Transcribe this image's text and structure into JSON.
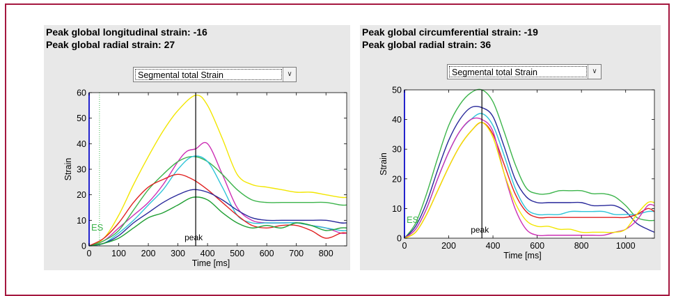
{
  "left": {
    "header_line1": "Peak global longitudinal strain: -16",
    "header_line2": "Peak global radial strain: 27",
    "dropdown_value": "Segmental total Strain"
  },
  "right": {
    "header_line1": "Peak global circumferential strain: -19",
    "header_line2": "Peak global radial strain: 36",
    "dropdown_value": "Segmental total Strain"
  },
  "chart_data": [
    {
      "type": "line",
      "xlabel": "Time [ms]",
      "ylabel": "Strain",
      "xlim": [
        0,
        870
      ],
      "ylim": [
        0,
        60
      ],
      "xticks": [
        0,
        100,
        200,
        300,
        400,
        500,
        600,
        700,
        800
      ],
      "yticks": [
        0,
        10,
        20,
        30,
        40,
        50,
        60
      ],
      "annotations": [
        {
          "text": "ES",
          "x": 35,
          "color": "#3cb44b"
        },
        {
          "text": "peak",
          "x": 360,
          "color": "#000000"
        }
      ],
      "series": [
        {
          "color": "#f2e600",
          "x": [
            0,
            50,
            100,
            150,
            200,
            250,
            300,
            360,
            400,
            450,
            500,
            550,
            600,
            650,
            700,
            750,
            800,
            850,
            870
          ],
          "values": [
            0,
            3,
            12,
            24,
            35,
            45,
            53,
            59,
            55,
            42,
            28,
            24,
            23,
            22,
            21,
            21,
            20,
            19,
            19
          ]
        },
        {
          "color": "#cc2fb4",
          "x": [
            0,
            50,
            100,
            150,
            200,
            250,
            300,
            330,
            360,
            400,
            450,
            500,
            550,
            600,
            650,
            700,
            750,
            800,
            850,
            870
          ],
          "values": [
            0,
            2,
            7,
            12,
            17,
            24,
            33,
            37,
            38,
            40,
            28,
            15,
            10,
            9,
            9,
            9,
            8,
            7,
            5,
            5
          ]
        },
        {
          "color": "#3cb44b",
          "x": [
            0,
            50,
            100,
            150,
            200,
            250,
            300,
            350,
            400,
            450,
            500,
            550,
            600,
            650,
            700,
            750,
            800,
            850,
            870
          ],
          "values": [
            0,
            2,
            6,
            14,
            22,
            28,
            33,
            35,
            33,
            28,
            22,
            18,
            17,
            17,
            17,
            17,
            17,
            16,
            16
          ]
        },
        {
          "color": "#2ec4d8",
          "x": [
            0,
            50,
            100,
            150,
            200,
            250,
            300,
            350,
            400,
            450,
            500,
            550,
            600,
            650,
            700,
            750,
            800,
            850,
            870
          ],
          "values": [
            0,
            1,
            5,
            10,
            16,
            22,
            30,
            35,
            33,
            23,
            12,
            9,
            9,
            9,
            9,
            8,
            7,
            6,
            6
          ]
        },
        {
          "color": "#e02020",
          "x": [
            0,
            50,
            100,
            150,
            200,
            250,
            300,
            350,
            400,
            450,
            500,
            550,
            600,
            650,
            700,
            750,
            800,
            850,
            870
          ],
          "values": [
            0,
            3,
            9,
            17,
            23,
            26,
            28,
            26,
            22,
            17,
            12,
            8,
            7,
            8,
            8,
            6,
            3,
            5,
            5
          ]
        },
        {
          "color": "#28289a",
          "x": [
            0,
            50,
            100,
            150,
            200,
            250,
            300,
            350,
            400,
            450,
            500,
            550,
            600,
            650,
            700,
            750,
            800,
            850,
            870
          ],
          "values": [
            0,
            1,
            4,
            9,
            13,
            17,
            20,
            22,
            21,
            18,
            14,
            11,
            10,
            10,
            10,
            10,
            10,
            9,
            9
          ]
        },
        {
          "color": "#1e9e32",
          "x": [
            0,
            50,
            100,
            150,
            200,
            250,
            300,
            350,
            400,
            450,
            500,
            550,
            600,
            650,
            700,
            750,
            800,
            850,
            870
          ],
          "values": [
            0,
            1,
            3,
            7,
            11,
            13,
            16,
            19,
            18,
            13,
            9,
            7,
            8,
            7,
            9,
            8,
            6,
            7,
            7
          ]
        }
      ]
    },
    {
      "type": "line",
      "xlabel": "Time [ms]",
      "ylabel": "Strain",
      "xlim": [
        0,
        1130
      ],
      "ylim": [
        0,
        50
      ],
      "xticks": [
        0,
        200,
        400,
        600,
        800,
        1000
      ],
      "yticks": [
        0,
        10,
        20,
        30,
        40,
        50
      ],
      "annotations": [
        {
          "text": "ES",
          "x": 0,
          "color": "#3cb44b"
        },
        {
          "text": "peak",
          "x": 350,
          "color": "#000000"
        }
      ],
      "series": [
        {
          "color": "#3cb44b",
          "x": [
            0,
            50,
            100,
            150,
            200,
            250,
            300,
            350,
            400,
            450,
            500,
            550,
            600,
            650,
            700,
            750,
            800,
            850,
            900,
            950,
            1000,
            1050,
            1100,
            1130
          ],
          "values": [
            0,
            5,
            15,
            27,
            38,
            45,
            49,
            50,
            46,
            36,
            25,
            17,
            15,
            15,
            16,
            16,
            16,
            15,
            15,
            14,
            11,
            7,
            6,
            6
          ]
        },
        {
          "color": "#28289a",
          "x": [
            0,
            50,
            100,
            150,
            200,
            250,
            300,
            350,
            400,
            450,
            500,
            550,
            600,
            650,
            700,
            750,
            800,
            850,
            900,
            950,
            1000,
            1050,
            1100,
            1130
          ],
          "values": [
            0,
            4,
            12,
            23,
            33,
            40,
            44,
            44,
            41,
            31,
            20,
            14,
            12,
            12,
            12,
            12,
            12,
            11,
            11,
            11,
            9,
            5,
            3,
            2
          ]
        },
        {
          "color": "#2ec4d8",
          "x": [
            0,
            50,
            100,
            150,
            200,
            250,
            300,
            350,
            400,
            450,
            500,
            550,
            600,
            650,
            700,
            750,
            800,
            850,
            900,
            950,
            1000,
            1050,
            1100,
            1130
          ],
          "values": [
            0,
            3,
            10,
            20,
            29,
            36,
            40,
            42,
            38,
            28,
            17,
            10,
            8,
            8,
            8,
            9,
            9,
            9,
            9,
            8,
            8,
            8,
            9,
            9
          ]
        },
        {
          "color": "#e02020",
          "x": [
            0,
            50,
            100,
            150,
            200,
            250,
            300,
            350,
            400,
            450,
            500,
            550,
            600,
            650,
            700,
            750,
            800,
            850,
            900,
            950,
            1000,
            1050,
            1100,
            1130
          ],
          "values": [
            0,
            2,
            8,
            16,
            24,
            31,
            36,
            39,
            35,
            25,
            15,
            9,
            7,
            7,
            7,
            7,
            7,
            7,
            7,
            7,
            7,
            8,
            10,
            9
          ]
        },
        {
          "color": "#cc2fb4",
          "x": [
            0,
            50,
            100,
            150,
            200,
            250,
            300,
            350,
            400,
            450,
            500,
            550,
            600,
            650,
            700,
            750,
            800,
            850,
            900,
            950,
            1000,
            1050,
            1100,
            1130
          ],
          "values": [
            0,
            3,
            10,
            20,
            29,
            36,
            40,
            40,
            36,
            22,
            10,
            3,
            1,
            1,
            1,
            1,
            1,
            1,
            1,
            2,
            3,
            6,
            11,
            11
          ]
        },
        {
          "color": "#f2e600",
          "x": [
            0,
            50,
            100,
            150,
            200,
            250,
            300,
            350,
            400,
            450,
            500,
            550,
            600,
            650,
            700,
            750,
            800,
            850,
            900,
            950,
            1000,
            1050,
            1100,
            1130
          ],
          "values": [
            0,
            2,
            8,
            16,
            24,
            31,
            36,
            39,
            34,
            22,
            12,
            6,
            4,
            4,
            3,
            3,
            2,
            2,
            2,
            2,
            3,
            8,
            12,
            12
          ]
        }
      ]
    }
  ]
}
